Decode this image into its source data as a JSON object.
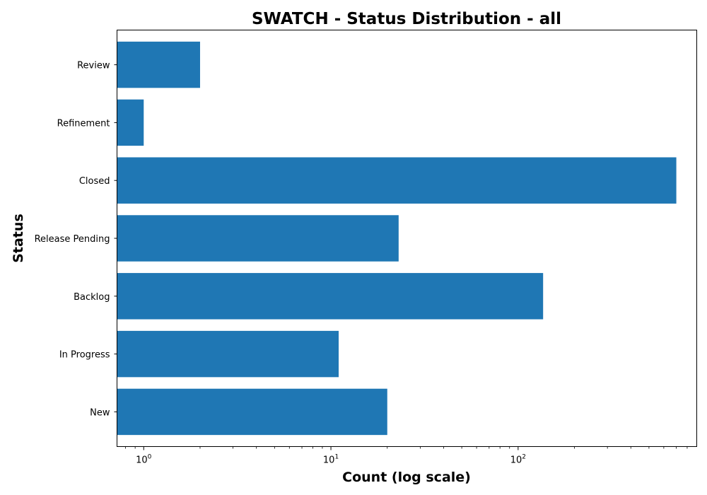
{
  "chart_data": {
    "type": "bar",
    "orientation": "horizontal",
    "title": "SWATCH - Status Distribution - all",
    "xlabel": "Count (log scale)",
    "ylabel": "Status",
    "x_scale": "log",
    "xlim": [
      0.72,
      900
    ],
    "categories": [
      "New",
      "In Progress",
      "Backlog",
      "Release Pending",
      "Closed",
      "Refinement",
      "Review"
    ],
    "values": [
      20,
      11,
      136,
      23,
      700,
      1,
      2
    ],
    "x_major_ticks": [
      {
        "value": 1,
        "label_base": "10",
        "label_exp": "0"
      },
      {
        "value": 10,
        "label_base": "10",
        "label_exp": "1"
      },
      {
        "value": 100,
        "label_base": "10",
        "label_exp": "2"
      }
    ],
    "grid": false,
    "legend": "none",
    "bar_color": "#1f77b4"
  }
}
